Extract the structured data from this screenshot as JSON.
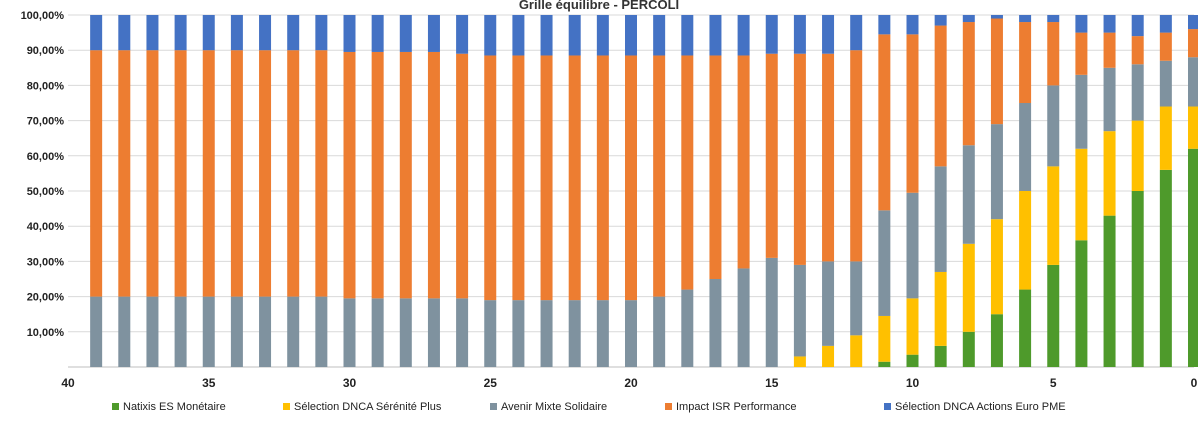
{
  "chart_data": {
    "type": "bar",
    "stacked": true,
    "title": "Grille équilibre - PERCOLI",
    "xlabel": "",
    "ylabel": "",
    "ylim": [
      0,
      100
    ],
    "x_range": [
      40,
      0
    ],
    "x_ticks": [
      40,
      35,
      30,
      25,
      20,
      15,
      10,
      5,
      0
    ],
    "y_ticks": [
      "",
      "10,00%",
      "20,00%",
      "30,00%",
      "40,00%",
      "50,00%",
      "60,00%",
      "70,00%",
      "80,00%",
      "90,00%",
      "100,00%"
    ],
    "grid": true,
    "legend_position": "bottom",
    "x": [
      39,
      38,
      37,
      36,
      35,
      34,
      33,
      32,
      31,
      30,
      29,
      28,
      27,
      26,
      25,
      24,
      23,
      22,
      21,
      20,
      19,
      18,
      17,
      16,
      15,
      14,
      13,
      12,
      11,
      10,
      9,
      8,
      7,
      6,
      5,
      4,
      3,
      2,
      1,
      0
    ],
    "series": [
      {
        "name": "Natixis ES Monétaire",
        "color": "#4e9a2b",
        "values": [
          0,
          0,
          0,
          0,
          0,
          0,
          0,
          0,
          0,
          0,
          0,
          0,
          0,
          0,
          0,
          0,
          0,
          0,
          0,
          0,
          0,
          0,
          0,
          0,
          0,
          0,
          0,
          0,
          1.5,
          3.5,
          6,
          10,
          15,
          22,
          29,
          36,
          43,
          50,
          56,
          62
        ]
      },
      {
        "name": "Sélection DNCA Sérénité Plus",
        "color": "#ffc000",
        "values": [
          0,
          0,
          0,
          0,
          0,
          0,
          0,
          0,
          0,
          0,
          0,
          0,
          0,
          0,
          0,
          0,
          0,
          0,
          0,
          0,
          0,
          0,
          0,
          0,
          0,
          3,
          6,
          9,
          13,
          16,
          21,
          25,
          27,
          28,
          28,
          26,
          24,
          20,
          18,
          12
        ]
      },
      {
        "name": "Avenir Mixte Solidaire",
        "color": "#7f929f",
        "values": [
          20,
          20,
          20,
          20,
          20,
          20,
          20,
          20,
          20,
          19.5,
          19.5,
          19.5,
          19.5,
          19.5,
          19,
          19,
          19,
          19,
          19,
          19,
          20,
          22,
          25,
          28,
          31,
          26,
          24,
          21,
          30,
          30,
          30,
          28,
          27,
          25,
          23,
          21,
          18,
          16,
          13,
          14
        ]
      },
      {
        "name": "Impact ISR Performance",
        "color": "#ed7d31",
        "values": [
          70,
          70,
          70,
          70,
          70,
          70,
          70,
          70,
          70,
          70,
          70,
          70,
          70,
          69.5,
          69.5,
          69.5,
          69.5,
          69.5,
          69.5,
          69.5,
          68.5,
          66.5,
          63.5,
          60.5,
          58,
          60,
          59,
          60,
          50,
          45,
          40,
          35,
          30,
          23,
          18,
          12,
          10,
          8,
          8,
          8
        ]
      },
      {
        "name": "Sélection DNCA Actions Euro PME",
        "color": "#4472c4",
        "values": [
          10,
          10,
          10,
          10,
          10,
          10,
          10,
          10,
          10,
          10.5,
          10.5,
          10.5,
          10.5,
          11,
          11.5,
          11.5,
          11.5,
          11.5,
          11.5,
          11.5,
          11.5,
          11.5,
          11.5,
          11.5,
          11,
          11,
          11,
          10,
          5.5,
          5.5,
          3,
          2,
          1,
          2,
          2,
          5,
          5,
          6,
          5,
          4
        ]
      }
    ]
  }
}
